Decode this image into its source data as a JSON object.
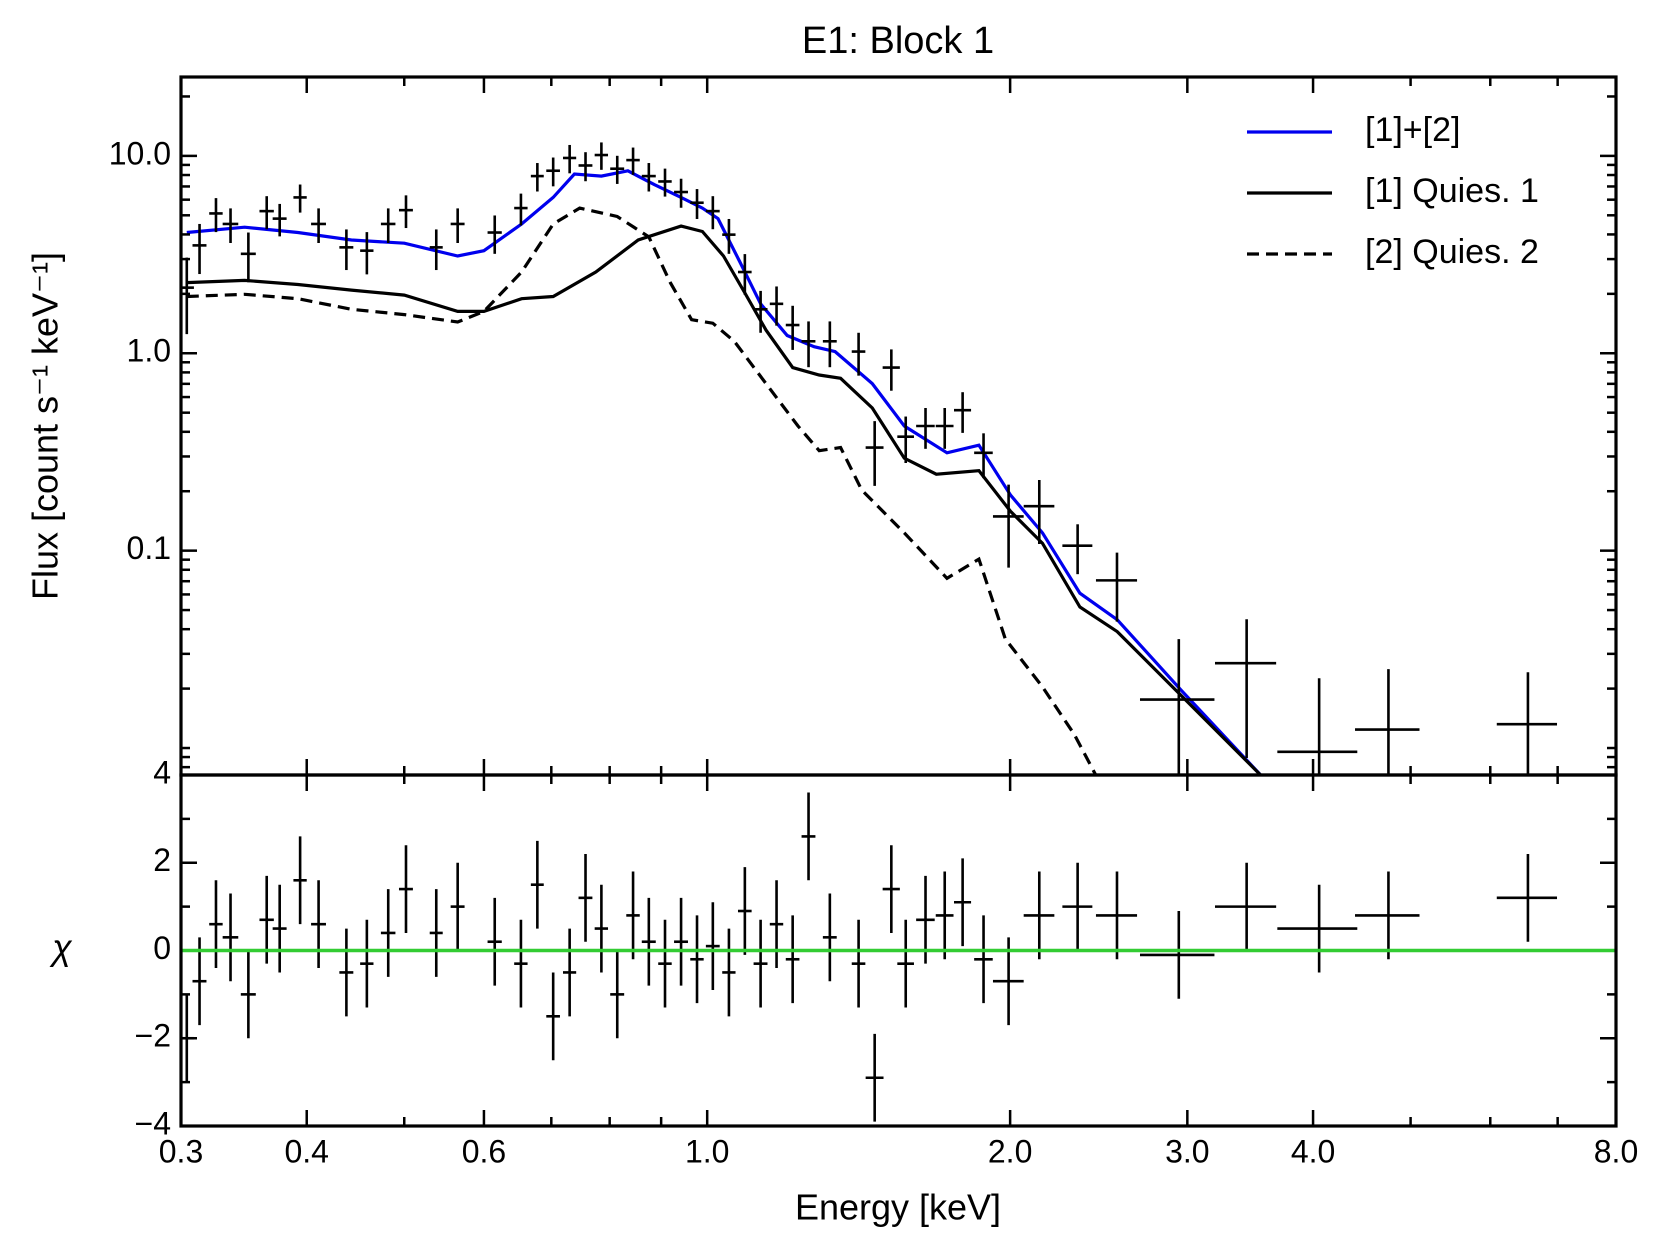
{
  "chart_data": [
    {
      "type": "line",
      "title": "E1: Block 1",
      "ylabel": "Flux [count s⁻¹ keV⁻¹]",
      "log_x": true,
      "log_y": true,
      "xlim": [
        0.3,
        8.0
      ],
      "ylim": [
        0.0073,
        25.1
      ],
      "xticks": [
        0.3,
        0.4,
        0.6,
        1,
        2,
        3,
        4,
        8
      ],
      "xticks_minor": [
        0.5,
        0.7,
        0.8,
        0.9,
        5,
        6,
        7
      ],
      "yticks": [
        {
          "value": 10,
          "label": "10.0"
        },
        {
          "value": 1,
          "label": "1.0"
        },
        {
          "value": 0.1,
          "label": "0.1"
        }
      ],
      "yticks_minor": [
        0.008,
        0.009,
        0.01,
        0.02,
        0.03,
        0.04,
        0.05,
        0.06,
        0.07,
        0.08,
        0.09,
        0.2,
        0.3,
        0.4,
        0.5,
        0.6,
        0.7,
        0.8,
        0.9,
        2,
        3,
        4,
        5,
        6,
        7,
        8,
        9,
        20
      ],
      "legend": "upper right",
      "series": [
        {
          "name": "[1]+[2]",
          "color": "#0000ee",
          "dash": "solid",
          "x": [
            0.304,
            0.347,
            0.392,
            0.443,
            0.5,
            0.565,
            0.6,
            0.654,
            0.703,
            0.738,
            0.785,
            0.834,
            0.886,
            0.942,
            0.989,
            1.025,
            1.077,
            1.13,
            1.201,
            1.277,
            1.34,
            1.459,
            1.57,
            1.731,
            1.862,
            2.002,
            2.154,
            2.346,
            2.555,
            2.956,
            3.548
          ],
          "values": [
            4.09,
            4.35,
            4.09,
            3.75,
            3.61,
            3.11,
            3.31,
            4.52,
            6.16,
            8.1,
            7.9,
            8.4,
            7.15,
            6.16,
            5.44,
            4.81,
            2.92,
            1.78,
            1.23,
            1.08,
            1.02,
            0.702,
            0.428,
            0.313,
            0.342,
            0.191,
            0.123,
            0.0609,
            0.0447,
            0.0197,
            0.00729
          ]
        },
        {
          "name": "[1] Quies. 1",
          "color": "#000000",
          "dash": "solid",
          "x": [
            0.304,
            0.347,
            0.392,
            0.443,
            0.5,
            0.565,
            0.6,
            0.654,
            0.703,
            0.775,
            0.854,
            0.942,
            0.989,
            1.038,
            1.09,
            1.144,
            1.216,
            1.292,
            1.357,
            1.459,
            1.57,
            1.689,
            1.862,
            2.002,
            2.154,
            2.346,
            2.555,
            2.956,
            3.548
          ],
          "values": [
            2.28,
            2.34,
            2.23,
            2.09,
            1.97,
            1.63,
            1.63,
            1.89,
            1.94,
            2.58,
            3.75,
            4.41,
            4.14,
            3.11,
            2.02,
            1.31,
            0.846,
            0.776,
            0.747,
            0.528,
            0.294,
            0.244,
            0.254,
            0.158,
            0.109,
            0.0518,
            0.0389,
            0.0185,
            0.00729
          ]
        },
        {
          "name": "[2] Quies. 2",
          "color": "#000000",
          "dash": "dashed",
          "x": [
            0.304,
            0.347,
            0.392,
            0.443,
            0.5,
            0.565,
            0.6,
            0.654,
            0.703,
            0.747,
            0.814,
            0.875,
            0.919,
            0.965,
            1.013,
            1.064,
            1.144,
            1.231,
            1.292,
            1.357,
            1.424,
            1.57,
            1.731,
            1.862,
            1.978,
            2.154,
            2.317,
            2.433
          ],
          "values": [
            1.94,
            1.99,
            1.89,
            1.67,
            1.57,
            1.44,
            1.63,
            2.58,
            4.52,
            5.44,
            4.93,
            3.89,
            2.28,
            1.48,
            1.42,
            1.15,
            0.702,
            0.428,
            0.321,
            0.333,
            0.203,
            0.123,
            0.0724,
            0.0906,
            0.0357,
            0.0204,
            0.0117,
            0.00729
          ]
        }
      ],
      "points": {
        "color": "#000000",
        "x": [
          0.304,
          0.313,
          0.325,
          0.336,
          0.35,
          0.365,
          0.376,
          0.394,
          0.411,
          0.438,
          0.459,
          0.482,
          0.502,
          0.538,
          0.565,
          0.615,
          0.653,
          0.678,
          0.703,
          0.73,
          0.757,
          0.785,
          0.814,
          0.844,
          0.875,
          0.908,
          0.942,
          0.977,
          1.013,
          1.051,
          1.09,
          1.13,
          1.172,
          1.216,
          1.261,
          1.324,
          1.414,
          1.467,
          1.524,
          1.575,
          1.648,
          1.722,
          1.794,
          1.882,
          1.993,
          2.138,
          2.334,
          2.554,
          2.942,
          3.436,
          4.056,
          4.753,
          6.54
        ],
        "xerr": [
          0.005,
          0.005,
          0.005,
          0.006,
          0.006,
          0.006,
          0.006,
          0.006,
          0.007,
          0.007,
          0.007,
          0.008,
          0.008,
          0.008,
          0.009,
          0.01,
          0.01,
          0.01,
          0.011,
          0.011,
          0.012,
          0.012,
          0.013,
          0.013,
          0.014,
          0.014,
          0.015,
          0.015,
          0.016,
          0.016,
          0.017,
          0.018,
          0.018,
          0.019,
          0.02,
          0.021,
          0.022,
          0.03,
          0.03,
          0.03,
          0.035,
          0.035,
          0.035,
          0.04,
          0.07,
          0.075,
          0.08,
          0.12,
          0.25,
          0.24,
          0.37,
          0.35,
          0.45
        ],
        "values": [
          2.15,
          3.52,
          5.11,
          4.52,
          3.19,
          5.25,
          4.81,
          6.16,
          4.52,
          3.44,
          3.31,
          4.52,
          5.31,
          3.44,
          4.52,
          4.09,
          5.44,
          7.9,
          8.41,
          9.76,
          8.94,
          10.1,
          8.61,
          9.52,
          7.9,
          7.42,
          6.56,
          5.79,
          5.25,
          3.99,
          2.58,
          1.67,
          1.78,
          1.39,
          1.15,
          1.15,
          1.02,
          0.333,
          0.846,
          0.378,
          0.428,
          0.428,
          0.515,
          0.313,
          0.149,
          0.168,
          0.106,
          0.0707,
          0.0176,
          0.0269,
          0.00957,
          0.0124,
          0.0132
        ],
        "yerr": [
          0.9,
          1.0,
          1.0,
          0.9,
          0.9,
          1.0,
          0.9,
          1.0,
          0.9,
          0.8,
          0.8,
          0.9,
          1.0,
          0.8,
          0.9,
          0.9,
          1.0,
          1.3,
          1.4,
          1.6,
          1.5,
          1.6,
          1.4,
          1.5,
          1.3,
          1.2,
          1.1,
          1.0,
          1.0,
          0.8,
          0.6,
          0.4,
          0.4,
          0.35,
          0.3,
          0.3,
          0.25,
          0.12,
          0.2,
          0.1,
          0.1,
          0.1,
          0.12,
          0.08,
          0.067,
          0.06,
          0.03,
          0.027,
          0.018,
          0.018,
          0.013,
          0.0127,
          0.011
        ]
      }
    },
    {
      "type": "errorbar",
      "ylabel": "χ",
      "xlabel": "Energy [keV]",
      "log_x": true,
      "log_y": false,
      "xlim": [
        0.3,
        8.0
      ],
      "ylim": [
        -4,
        4
      ],
      "xticks": [
        0.3,
        0.4,
        0.6,
        {
          "value": 1,
          "label": "1.0"
        },
        {
          "value": 2,
          "label": "2.0"
        },
        {
          "value": 3,
          "label": "3.0"
        },
        {
          "value": 4,
          "label": "4.0"
        },
        {
          "value": 8,
          "label": "8.0"
        }
      ],
      "xticks_minor": [
        0.5,
        0.7,
        0.8,
        0.9,
        5,
        6,
        7
      ],
      "yticks": [
        {
          "value": -4,
          "label": "−4"
        },
        {
          "value": -2,
          "label": "−2"
        },
        0,
        2,
        4
      ],
      "yticks_minor": [
        -3,
        -1,
        1,
        3
      ],
      "hline": {
        "value": 0,
        "color": "#33cc33"
      },
      "points": {
        "color": "#000000",
        "x": [
          0.304,
          0.313,
          0.325,
          0.336,
          0.35,
          0.365,
          0.376,
          0.394,
          0.411,
          0.438,
          0.459,
          0.482,
          0.502,
          0.538,
          0.565,
          0.615,
          0.653,
          0.678,
          0.703,
          0.73,
          0.757,
          0.785,
          0.814,
          0.844,
          0.875,
          0.908,
          0.942,
          0.977,
          1.013,
          1.051,
          1.09,
          1.13,
          1.172,
          1.216,
          1.261,
          1.324,
          1.414,
          1.467,
          1.524,
          1.575,
          1.648,
          1.722,
          1.794,
          1.882,
          1.993,
          2.138,
          2.334,
          2.554,
          2.942,
          3.436,
          4.056,
          4.753,
          6.54
        ],
        "xerr": [
          0.005,
          0.005,
          0.005,
          0.006,
          0.006,
          0.006,
          0.006,
          0.006,
          0.007,
          0.007,
          0.007,
          0.008,
          0.008,
          0.008,
          0.009,
          0.01,
          0.01,
          0.01,
          0.011,
          0.011,
          0.012,
          0.012,
          0.013,
          0.013,
          0.014,
          0.014,
          0.015,
          0.015,
          0.016,
          0.016,
          0.017,
          0.018,
          0.018,
          0.019,
          0.02,
          0.021,
          0.022,
          0.03,
          0.03,
          0.03,
          0.035,
          0.035,
          0.035,
          0.04,
          0.07,
          0.075,
          0.08,
          0.12,
          0.25,
          0.24,
          0.37,
          0.35,
          0.45
        ],
        "values": [
          -2.0,
          -0.7,
          0.6,
          0.3,
          -1.0,
          0.7,
          0.5,
          1.6,
          0.6,
          -0.5,
          -0.3,
          0.4,
          1.4,
          0.4,
          1.0,
          0.2,
          -0.3,
          1.5,
          -1.5,
          -0.5,
          1.2,
          0.5,
          -1.0,
          0.8,
          0.2,
          -0.3,
          0.2,
          -0.2,
          0.1,
          -0.5,
          0.9,
          -0.3,
          0.6,
          -0.2,
          2.6,
          0.3,
          -0.3,
          -2.9,
          1.4,
          -0.3,
          0.7,
          0.8,
          1.1,
          -0.2,
          -0.7,
          0.8,
          1.0,
          0.8,
          -0.1,
          1.0,
          0.5,
          0.8,
          1.2
        ],
        "yerr": [
          1,
          1,
          1,
          1,
          1,
          1,
          1,
          1,
          1,
          1,
          1,
          1,
          1,
          1,
          1,
          1,
          1,
          1,
          1,
          1,
          1,
          1,
          1,
          1,
          1,
          1,
          1,
          1,
          1,
          1,
          1,
          1,
          1,
          1,
          1,
          1,
          1,
          1,
          1,
          1,
          1,
          1,
          1,
          1,
          1,
          1,
          1,
          1,
          1,
          1,
          1,
          1,
          1
        ]
      }
    }
  ]
}
